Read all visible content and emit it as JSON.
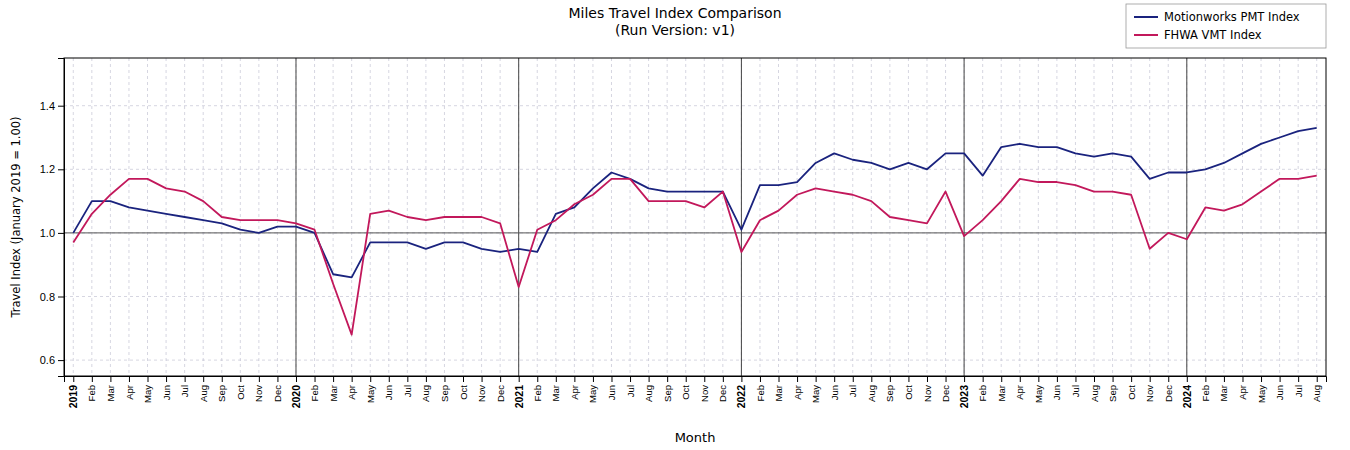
{
  "chart_data": {
    "type": "line",
    "title": "Miles Travel Index Comparison\n(Run Version: v1)",
    "x_label": "Month",
    "y_label": "Travel Index (January 2019 = 1.00)",
    "categories": [
      "2019",
      "Feb",
      "Mar",
      "Apr",
      "May",
      "Jun",
      "Jul",
      "Aug",
      "Sep",
      "Oct",
      "Nov",
      "Dec",
      "2020",
      "Feb",
      "Mar",
      "Apr",
      "May",
      "Jun",
      "Jul",
      "Aug",
      "Sep",
      "Oct",
      "Nov",
      "Dec",
      "2021",
      "Feb",
      "Mar",
      "Apr",
      "May",
      "Jun",
      "Jul",
      "Aug",
      "Sep",
      "Oct",
      "Nov",
      "Dec",
      "2022",
      "Feb",
      "Mar",
      "Apr",
      "May",
      "Jun",
      "Jul",
      "Aug",
      "Sep",
      "Oct",
      "Nov",
      "Dec",
      "2023",
      "Feb",
      "Mar",
      "Apr",
      "May",
      "Jun",
      "Jul",
      "Aug",
      "Sep",
      "Oct",
      "Nov",
      "Dec",
      "2024",
      "Feb",
      "Mar",
      "Apr",
      "May",
      "Jun",
      "Jul",
      "Aug"
    ],
    "series": [
      {
        "name": "Motionworks PMT Index",
        "color": "#1a237e",
        "values": [
          1.0,
          1.1,
          1.1,
          1.08,
          1.07,
          1.06,
          1.05,
          1.04,
          1.03,
          1.01,
          1.0,
          1.02,
          1.02,
          1.0,
          0.87,
          0.86,
          0.97,
          0.97,
          0.97,
          0.95,
          0.97,
          0.97,
          0.95,
          0.94,
          0.95,
          0.94,
          1.06,
          1.08,
          1.14,
          1.19,
          1.17,
          1.14,
          1.13,
          1.13,
          1.13,
          1.13,
          1.01,
          1.15,
          1.15,
          1.16,
          1.22,
          1.25,
          1.23,
          1.22,
          1.2,
          1.22,
          1.2,
          1.25,
          1.25,
          1.18,
          1.27,
          1.28,
          1.27,
          1.27,
          1.25,
          1.24,
          1.25,
          1.24,
          1.17,
          1.19,
          1.19,
          1.2,
          1.22,
          1.25,
          1.28,
          1.3,
          1.32,
          1.33
        ]
      },
      {
        "name": "FHWA VMT Index",
        "color": "#c2185b",
        "values": [
          0.97,
          1.06,
          1.12,
          1.17,
          1.17,
          1.14,
          1.13,
          1.1,
          1.05,
          1.04,
          1.04,
          1.04,
          1.03,
          1.01,
          0.84,
          0.68,
          1.06,
          1.07,
          1.05,
          1.04,
          1.05,
          1.05,
          1.05,
          1.03,
          0.83,
          1.01,
          1.04,
          1.09,
          1.12,
          1.17,
          1.17,
          1.1,
          1.1,
          1.1,
          1.08,
          1.13,
          0.94,
          1.04,
          1.07,
          1.12,
          1.14,
          1.13,
          1.12,
          1.1,
          1.05,
          1.04,
          1.03,
          1.13,
          0.99,
          1.04,
          1.1,
          1.17,
          1.16,
          1.16,
          1.15,
          1.13,
          1.13,
          1.12,
          0.95,
          1.0,
          0.98,
          1.08,
          1.07,
          1.09,
          1.13,
          1.17,
          1.17,
          1.18
        ]
      }
    ],
    "reference_line": 1.0,
    "ylim": [
      0.55,
      1.55
    ],
    "yticks": [
      0.6,
      0.8,
      {
        "value": 1.0,
        "label": "1.0"
      },
      1.2,
      1.4
    ],
    "grid": true,
    "legend": "top-right"
  }
}
